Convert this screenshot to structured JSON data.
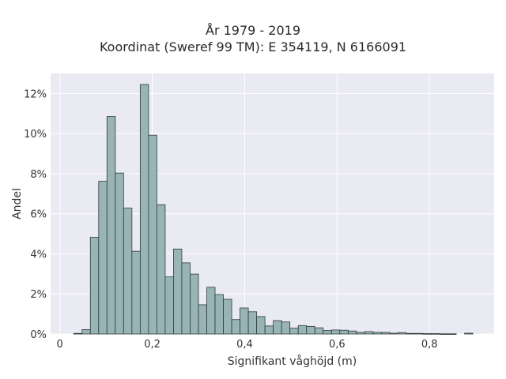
{
  "chart_data": {
    "type": "bar",
    "title": "År 1979 - 2019",
    "subtitle": "Koordinat (Sweref 99 TM): E 354119, N 6166091",
    "xlabel": "Signifikant våghöjd (m)",
    "ylabel": "Andel",
    "xlim": [
      -0.02,
      0.94
    ],
    "ylim": [
      0,
      0.13
    ],
    "grid": true,
    "x_ticks": [
      0,
      0.2,
      0.4,
      0.6,
      0.8
    ],
    "x_tick_labels": [
      "0",
      "0,2",
      "0,4",
      "0,6",
      "0,8"
    ],
    "y_ticks": [
      0,
      0.02,
      0.04,
      0.06,
      0.08,
      0.1,
      0.12
    ],
    "y_tick_labels": [
      "0%",
      "2%",
      "4%",
      "6%",
      "8%",
      "10%",
      "12%"
    ],
    "bin_width": 0.018,
    "bin_start": 0.03,
    "values": [
      0.0003,
      0.0022,
      0.0483,
      0.0762,
      0.1085,
      0.0803,
      0.0628,
      0.0413,
      0.1245,
      0.0992,
      0.0645,
      0.0285,
      0.0424,
      0.0355,
      0.0299,
      0.0146,
      0.0233,
      0.0197,
      0.0173,
      0.0072,
      0.013,
      0.0111,
      0.0087,
      0.004,
      0.0067,
      0.006,
      0.0029,
      0.0042,
      0.0038,
      0.0031,
      0.0018,
      0.002,
      0.0019,
      0.0015,
      0.0008,
      0.0012,
      0.0008,
      0.0008,
      0.0004,
      0.0007,
      0.0003,
      0.0003,
      0.0002,
      0.0002,
      0.0001,
      0.0001,
      0.0,
      0.0004
    ],
    "colors": {
      "plot_bg": "#eaeaf2",
      "bar_fill": "#98b4b4",
      "bar_edge": "#2f3b3b",
      "grid": "#ffffff"
    }
  }
}
